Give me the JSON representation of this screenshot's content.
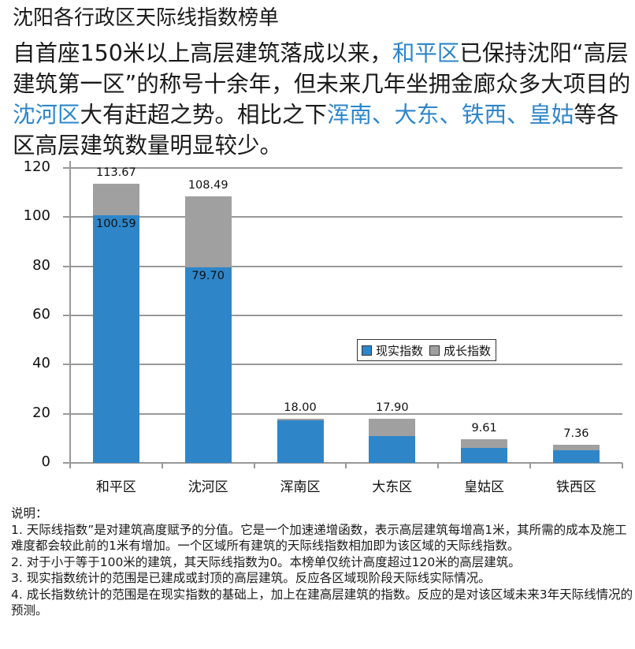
{
  "title": "沈阳各行政区天际线指数榜单",
  "lead": {
    "segments": [
      {
        "text": "自首座150米以上高层建筑落成以来，",
        "highlight": false
      },
      {
        "text": "和平区",
        "highlight": true
      },
      {
        "text": "已保持沈阳“高层建筑第一区”的称号十余年，但未来几年坐拥金廊众多大项目的",
        "highlight": false
      },
      {
        "text": "沈河区",
        "highlight": true
      },
      {
        "text": "大有赶超之势。相比之下",
        "highlight": false
      },
      {
        "text": "浑南、大东、铁西、皇姑",
        "highlight": true
      },
      {
        "text": "等各区高层建筑数量明显较少。",
        "highlight": false
      }
    ]
  },
  "colors": {
    "real": "#2e86c9",
    "growth": "#a0a0a0",
    "highlight_text": "#2e86c9",
    "grid": "#999999"
  },
  "chart_data": {
    "type": "bar",
    "stacked": true,
    "title": "沈阳各行政区天际线指数榜单",
    "xlabel": "",
    "ylabel": "",
    "ylim": [
      0,
      120
    ],
    "yticks": [
      0,
      20,
      40,
      60,
      80,
      100,
      120
    ],
    "grid": true,
    "legend_position": "top-right",
    "categories": [
      "和平区",
      "沈河区",
      "浑南区",
      "大东区",
      "皇姑区",
      "铁西区"
    ],
    "series": [
      {
        "name": "现实指数",
        "values": [
          100.59,
          79.7,
          17.3,
          10.9,
          6.1,
          5.0
        ]
      },
      {
        "name": "成长指数",
        "values": [
          13.08,
          28.79,
          0.7,
          7.0,
          3.51,
          2.36
        ]
      }
    ],
    "totals": [
      113.67,
      108.49,
      18.0,
      17.9,
      9.61,
      7.36
    ],
    "total_labels": [
      "113.67",
      "108.49",
      "18.00",
      "17.90",
      "9.61",
      "7.36"
    ],
    "real_labels": [
      "100.59",
      "79.70",
      "",
      "",
      "",
      ""
    ]
  },
  "legend": {
    "items": [
      {
        "label": "现实指数"
      },
      {
        "label": "成长指数"
      }
    ]
  },
  "notes": {
    "heading": "说明：",
    "items": [
      "1. 天际线指数”是对建筑高度赋予的分值。它是一个加速递增函数，表示高层建筑每增高1米，其所需的成本及施工难度都会较此前的1米有增加。一个区域所有建筑的天际线指数相加即为该区域的天际线指数。",
      "2. 对于小于等于100米的建筑，其天际线指数为0。本榜单仅统计高度超过120米的高层建筑。",
      "3. 现实指数统计的范围是已建成或封顶的高层建筑。反应各区域现阶段天际线实际情况。",
      "4. 成长指数统计的范围是在现实指数的基础上，加上在建高层建筑的指数。反应的是对该区域未来3年天际线情况的预测。"
    ]
  }
}
